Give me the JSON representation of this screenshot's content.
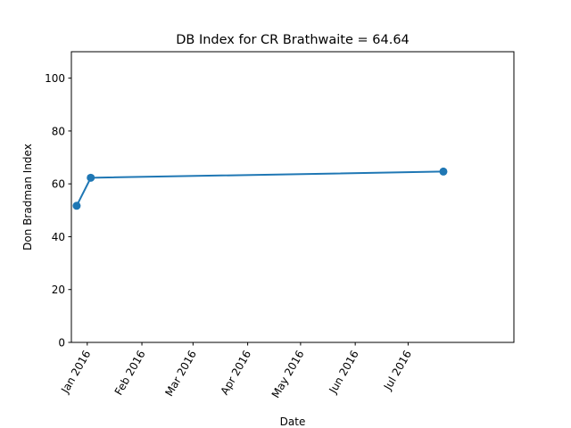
{
  "chart_data": {
    "type": "line",
    "title": "DB Index for CR Brathwaite = 64.64",
    "xlabel": "Date",
    "ylabel": "Don Bradman Index",
    "ylim": [
      0,
      110
    ],
    "xlim": [
      "2015-12-23",
      "2016-08-30"
    ],
    "y_ticks": [
      0,
      20,
      40,
      60,
      80,
      100
    ],
    "x_ticks": [
      {
        "date": "2016-01-01",
        "label": "Jan 2016"
      },
      {
        "date": "2016-02-01",
        "label": "Feb 2016"
      },
      {
        "date": "2016-03-01",
        "label": "Mar 2016"
      },
      {
        "date": "2016-04-01",
        "label": "Apr 2016"
      },
      {
        "date": "2016-05-01",
        "label": "May 2016"
      },
      {
        "date": "2016-06-01",
        "label": "Jun 2016"
      },
      {
        "date": "2016-07-01",
        "label": "Jul 2016"
      }
    ],
    "series": [
      {
        "color": "#1f77b4",
        "x": [
          "2015-12-26",
          "2016-01-03",
          "2016-07-21"
        ],
        "y": [
          51.7,
          62.3,
          64.64
        ]
      }
    ],
    "grid": false,
    "legend": "none"
  }
}
